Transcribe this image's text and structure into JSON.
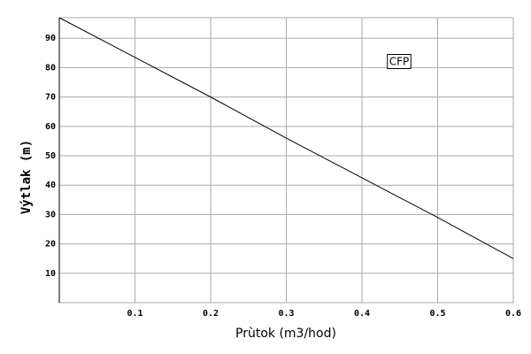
{
  "chart_data": {
    "type": "line",
    "x_label": "Prùtok (m3/hod)",
    "y_label": "Výtlak (m)",
    "series": [
      {
        "name": "CFP",
        "color": "#000000",
        "x": [
          0,
          0.1,
          0.2,
          0.3,
          0.4,
          0.5,
          0.6
        ],
        "values": [
          97,
          83.5,
          70,
          56,
          42.5,
          29,
          15
        ]
      }
    ],
    "xlim": [
      0,
      0.6
    ],
    "xticks": [
      0.1,
      0.2,
      0.3,
      0.4,
      0.5,
      0.6
    ],
    "ylim": [
      0,
      97
    ],
    "yticks": [
      10,
      20,
      30,
      40,
      50,
      60,
      70,
      80,
      90
    ],
    "grid": true
  }
}
